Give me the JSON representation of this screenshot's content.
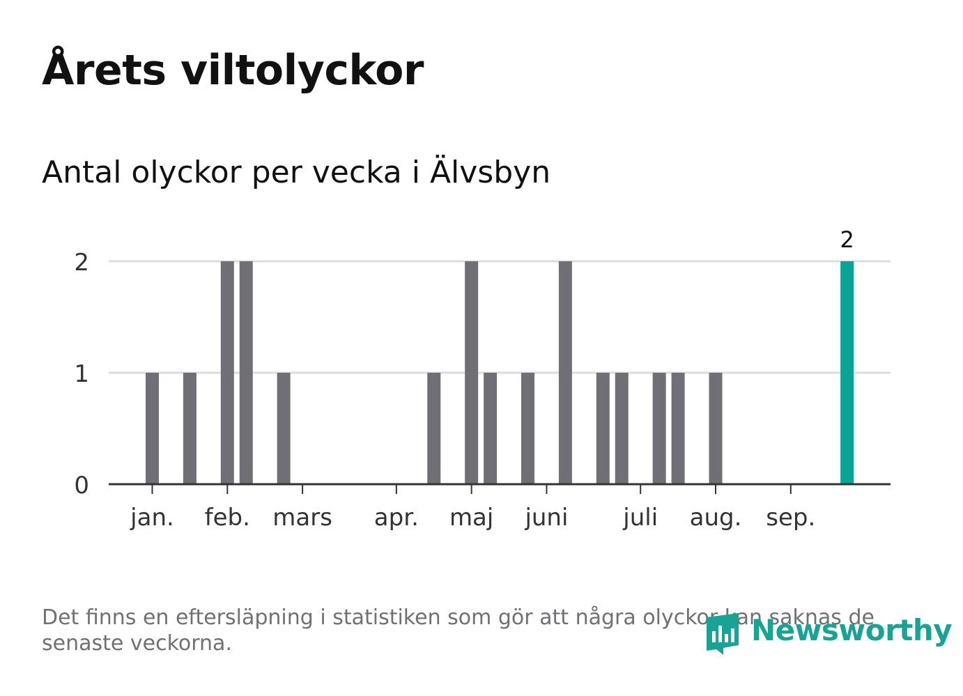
{
  "title": "Årets viltolyckor",
  "subtitle": "Antal olyckor per vecka i Älvsbyn",
  "footnote": "Det finns en eftersläpning i statistiken som gör att några olyckor kan saknas de senaste veckorna.",
  "brand": {
    "name": "Newsworthy",
    "color": "#19a394"
  },
  "colors": {
    "bar": "#706f75",
    "highlight": "#0aa496",
    "grid": "#dddddd",
    "axis": "#333333"
  },
  "chart_data": {
    "type": "bar",
    "x": [
      1,
      2,
      3,
      4,
      5,
      6,
      7,
      8,
      9,
      10,
      11,
      12,
      13,
      14,
      15,
      16,
      17,
      18,
      19,
      20,
      21,
      22,
      23,
      24,
      25,
      26,
      27,
      28,
      29,
      30,
      31,
      32,
      33,
      34,
      35,
      36,
      37,
      38
    ],
    "values": [
      1,
      0,
      1,
      0,
      2,
      2,
      0,
      1,
      0,
      0,
      0,
      0,
      0,
      0,
      0,
      1,
      0,
      2,
      1,
      0,
      1,
      0,
      2,
      0,
      1,
      1,
      0,
      1,
      1,
      0,
      1,
      0,
      0,
      0,
      0,
      0,
      0,
      2
    ],
    "highlight_index": 37,
    "highlight_label": "2",
    "ylim": [
      0,
      2
    ],
    "yticks": [
      "0",
      "1",
      "2"
    ],
    "month_labels": [
      {
        "label": "jan.",
        "week": 1
      },
      {
        "label": "feb.",
        "week": 5
      },
      {
        "label": "mars",
        "week": 9
      },
      {
        "label": "apr.",
        "week": 14
      },
      {
        "label": "maj",
        "week": 18
      },
      {
        "label": "juni",
        "week": 22
      },
      {
        "label": "juli",
        "week": 27
      },
      {
        "label": "aug.",
        "week": 31
      },
      {
        "label": "sep.",
        "week": 35
      }
    ],
    "grid": true
  }
}
